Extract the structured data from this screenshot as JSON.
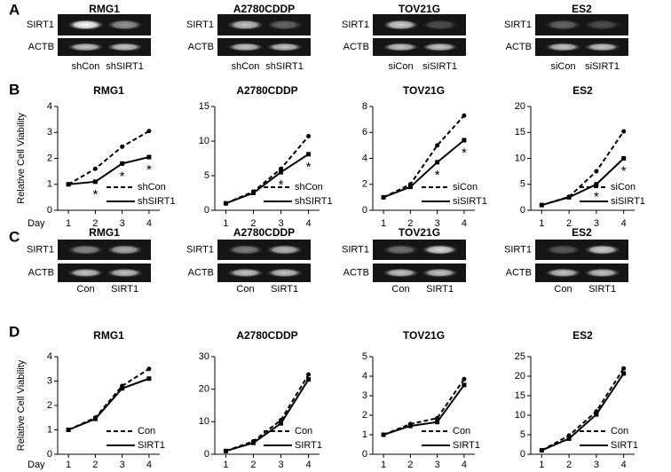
{
  "panel_labels": [
    "A",
    "B",
    "C",
    "D"
  ],
  "blots": [
    {
      "title": "RMG1",
      "rows": [
        "SIRT1",
        "ACTB"
      ],
      "lanes": [
        "shCon",
        "shSIRT1"
      ]
    },
    {
      "title": "A2780CDDP",
      "rows": [
        "SIRT1",
        "ACTB"
      ],
      "lanes": [
        "shCon",
        "shSIRT1"
      ]
    },
    {
      "title": "TOV21G",
      "rows": [
        "SIRT1",
        "ACTB"
      ],
      "lanes": [
        "siCon",
        "siSIRT1"
      ]
    },
    {
      "title": "ES2",
      "rows": [
        "SIRT1",
        "ACTB"
      ],
      "lanes": [
        "siCon",
        "siSIRT1"
      ]
    },
    {
      "title": "RMG1",
      "rows": [
        "SIRT1",
        "ACTB"
      ],
      "lanes": [
        "Con",
        "SIRT1"
      ]
    },
    {
      "title": "A2780CDDP",
      "rows": [
        "SIRT1",
        "ACTB"
      ],
      "lanes": [
        "Con",
        "SIRT1"
      ]
    },
    {
      "title": "TOV21G",
      "rows": [
        "SIRT1",
        "ACTB"
      ],
      "lanes": [
        "Con",
        "SIRT1"
      ]
    },
    {
      "title": "ES2",
      "rows": [
        "SIRT1",
        "ACTB"
      ],
      "lanes": [
        "Con",
        "SIRT1"
      ]
    }
  ],
  "chart_data": [
    {
      "type": "line",
      "title": "RMG1",
      "ylabel": "Relative Cell Viability",
      "xlabel": "Day",
      "x": [
        1,
        2,
        3,
        4
      ],
      "xticks": [
        1,
        2,
        3,
        4
      ],
      "xlim": [
        0.6,
        4.4
      ],
      "ylim": [
        0,
        4
      ],
      "yticks": [
        0,
        1,
        2,
        3,
        4
      ],
      "series": [
        {
          "name": "shCon",
          "color": "#000000",
          "dashed": true,
          "values": [
            1,
            1.6,
            2.45,
            3.05
          ]
        },
        {
          "name": "shSIRT1",
          "color": "#000000",
          "dashed": false,
          "values": [
            1,
            1.1,
            1.8,
            2.05
          ],
          "annotations": [
            null,
            "*",
            "*",
            "*"
          ]
        }
      ]
    },
    {
      "type": "line",
      "title": "A2780CDDP",
      "x": [
        1,
        2,
        3,
        4
      ],
      "xticks": [
        1,
        2,
        3,
        4
      ],
      "xlim": [
        0.6,
        4.4
      ],
      "ylim": [
        0,
        15
      ],
      "yticks": [
        0,
        5,
        10,
        15
      ],
      "series": [
        {
          "name": "shCon",
          "color": "#000000",
          "dashed": true,
          "values": [
            1,
            2.7,
            6,
            10.7
          ]
        },
        {
          "name": "shSIRT1",
          "color": "#000000",
          "dashed": false,
          "values": [
            1,
            2.5,
            5.5,
            8.1
          ],
          "annotations": [
            null,
            null,
            "*",
            "*"
          ]
        }
      ]
    },
    {
      "type": "line",
      "title": "TOV21G",
      "x": [
        1,
        2,
        3,
        4
      ],
      "xticks": [
        1,
        2,
        3,
        4
      ],
      "xlim": [
        0.6,
        4.4
      ],
      "ylim": [
        0,
        8
      ],
      "yticks": [
        0,
        2,
        4,
        6,
        8
      ],
      "series": [
        {
          "name": "siCon",
          "color": "#000000",
          "dashed": true,
          "values": [
            1,
            2,
            5,
            7.3
          ]
        },
        {
          "name": "siSIRT1",
          "color": "#000000",
          "dashed": false,
          "values": [
            1,
            1.8,
            3.7,
            5.4
          ],
          "annotations": [
            null,
            null,
            "*",
            "*"
          ]
        }
      ]
    },
    {
      "type": "line",
      "title": "ES2",
      "x": [
        1,
        2,
        3,
        4
      ],
      "xticks": [
        1,
        2,
        3,
        4
      ],
      "xlim": [
        0.6,
        4.4
      ],
      "ylim": [
        0,
        20
      ],
      "yticks": [
        0,
        5,
        10,
        15,
        20
      ],
      "series": [
        {
          "name": "siCon",
          "color": "#000000",
          "dashed": true,
          "values": [
            1,
            2.6,
            7.5,
            15.2
          ]
        },
        {
          "name": "siSIRT1",
          "color": "#000000",
          "dashed": false,
          "values": [
            1,
            2.5,
            5,
            10
          ],
          "annotations": [
            null,
            null,
            "*",
            "*"
          ]
        }
      ]
    },
    {
      "type": "line",
      "title": "RMG1",
      "ylabel": "Relative Cell Viability",
      "xlabel": "Day",
      "x": [
        1,
        2,
        3,
        4
      ],
      "xticks": [
        1,
        2,
        3,
        4
      ],
      "xlim": [
        0.6,
        4.4
      ],
      "ylim": [
        0,
        4
      ],
      "yticks": [
        0,
        1,
        2,
        3,
        4
      ],
      "series": [
        {
          "name": "Con",
          "color": "#000000",
          "dashed": true,
          "values": [
            1,
            1.5,
            2.8,
            3.5
          ]
        },
        {
          "name": "SIRT1",
          "color": "#000000",
          "dashed": false,
          "values": [
            1,
            1.45,
            2.7,
            3.1
          ]
        }
      ]
    },
    {
      "type": "line",
      "title": "A2780CDDP",
      "x": [
        1,
        2,
        3,
        4
      ],
      "xticks": [
        1,
        2,
        3,
        4
      ],
      "xlim": [
        0.6,
        4.4
      ],
      "ylim": [
        0,
        30
      ],
      "yticks": [
        0,
        10,
        20,
        30
      ],
      "series": [
        {
          "name": "Con",
          "color": "#000000",
          "dashed": true,
          "values": [
            1,
            4,
            10.5,
            24.5
          ]
        },
        {
          "name": "SIRT1",
          "color": "#000000",
          "dashed": false,
          "values": [
            1,
            3.5,
            9.5,
            23
          ]
        }
      ]
    },
    {
      "type": "line",
      "title": "TOV21G",
      "x": [
        1,
        2,
        3,
        4
      ],
      "xticks": [
        1,
        2,
        3,
        4
      ],
      "xlim": [
        0.6,
        4.4
      ],
      "ylim": [
        0,
        5
      ],
      "yticks": [
        0,
        1,
        2,
        3,
        4,
        5
      ],
      "series": [
        {
          "name": "Con",
          "color": "#000000",
          "dashed": true,
          "values": [
            1,
            1.55,
            1.85,
            3.85
          ]
        },
        {
          "name": "SIRT1",
          "color": "#000000",
          "dashed": false,
          "values": [
            1,
            1.45,
            1.65,
            3.55
          ]
        }
      ]
    },
    {
      "type": "line",
      "title": "ES2",
      "x": [
        1,
        2,
        3,
        4
      ],
      "xticks": [
        1,
        2,
        3,
        4
      ],
      "xlim": [
        0.6,
        4.4
      ],
      "ylim": [
        0,
        25
      ],
      "yticks": [
        0,
        5,
        10,
        15,
        20,
        25
      ],
      "series": [
        {
          "name": "Con",
          "color": "#000000",
          "dashed": true,
          "values": [
            1,
            4.8,
            11,
            22
          ]
        },
        {
          "name": "SIRT1",
          "color": "#000000",
          "dashed": false,
          "values": [
            1,
            4,
            10.2,
            20.7
          ]
        }
      ]
    }
  ]
}
